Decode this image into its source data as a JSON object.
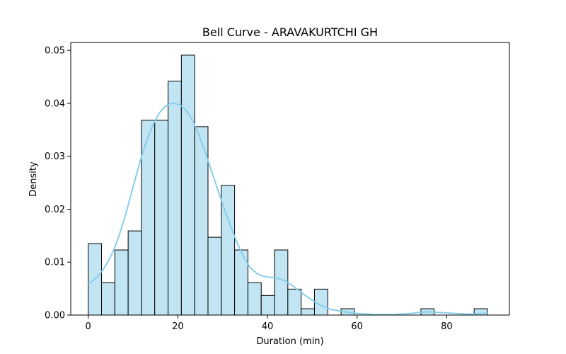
{
  "chart_data": {
    "type": "histogram",
    "title": "Bell Curve - ARAVAKURTCHI GH",
    "xlabel": "Duration (min)",
    "ylabel": "Density",
    "xlim": [
      -3.9,
      94.0
    ],
    "ylim": [
      0,
      0.0515
    ],
    "xticks": [
      0,
      20,
      40,
      60,
      80
    ],
    "yticks": [
      0.0,
      0.01,
      0.02,
      0.03,
      0.04,
      0.05
    ],
    "ytick_labels": [
      "0.00",
      "0.01",
      "0.02",
      "0.03",
      "0.04",
      "0.05"
    ],
    "bin_width": 2.97,
    "bins": [
      {
        "x0": 0.0,
        "density": 0.0135
      },
      {
        "x0": 2.97,
        "density": 0.0061
      },
      {
        "x0": 5.94,
        "density": 0.0123
      },
      {
        "x0": 8.91,
        "density": 0.0159
      },
      {
        "x0": 11.88,
        "density": 0.0368
      },
      {
        "x0": 14.85,
        "density": 0.0368
      },
      {
        "x0": 17.82,
        "density": 0.0442
      },
      {
        "x0": 20.79,
        "density": 0.0491
      },
      {
        "x0": 23.76,
        "density": 0.0356
      },
      {
        "x0": 26.73,
        "density": 0.0147
      },
      {
        "x0": 29.7,
        "density": 0.0245
      },
      {
        "x0": 32.67,
        "density": 0.0123
      },
      {
        "x0": 35.64,
        "density": 0.0061
      },
      {
        "x0": 38.61,
        "density": 0.0037
      },
      {
        "x0": 41.58,
        "density": 0.0123
      },
      {
        "x0": 44.55,
        "density": 0.0049
      },
      {
        "x0": 47.52,
        "density": 0.0012
      },
      {
        "x0": 50.49,
        "density": 0.0049
      },
      {
        "x0": 56.43,
        "density": 0.0012
      },
      {
        "x0": 74.25,
        "density": 0.0012
      },
      {
        "x0": 86.13,
        "density": 0.0012
      }
    ],
    "kde": {
      "x": [
        0,
        2,
        4,
        6,
        8,
        10,
        12,
        14,
        16,
        18,
        20,
        22,
        24,
        26,
        28,
        30,
        32,
        34,
        36,
        38,
        40,
        42,
        44,
        46,
        48,
        50,
        52,
        54,
        56,
        58,
        60,
        62,
        64,
        66,
        68,
        70,
        72,
        74,
        76,
        78,
        80,
        82,
        84,
        86,
        88,
        89.1
      ],
      "y": [
        0.0058,
        0.0072,
        0.0095,
        0.013,
        0.018,
        0.0242,
        0.0302,
        0.035,
        0.0383,
        0.0398,
        0.0398,
        0.0385,
        0.0355,
        0.031,
        0.026,
        0.021,
        0.0163,
        0.0122,
        0.0092,
        0.0077,
        0.0072,
        0.007,
        0.0064,
        0.0053,
        0.004,
        0.0028,
        0.0018,
        0.0011,
        0.0008,
        0.0005,
        0.0003,
        0.0002,
        0.0001,
        0.0001,
        0.0001,
        0.0002,
        0.0003,
        0.0005,
        0.0006,
        0.0005,
        0.0004,
        0.0003,
        0.0002,
        0.0002,
        0.0003,
        0.0004
      ]
    },
    "colors": {
      "bar_fill": "#c1e5f2",
      "bar_edge": "#000000",
      "kde_line": "#87ceeb",
      "axes": "#000000"
    },
    "grid": false,
    "legend": "none"
  }
}
